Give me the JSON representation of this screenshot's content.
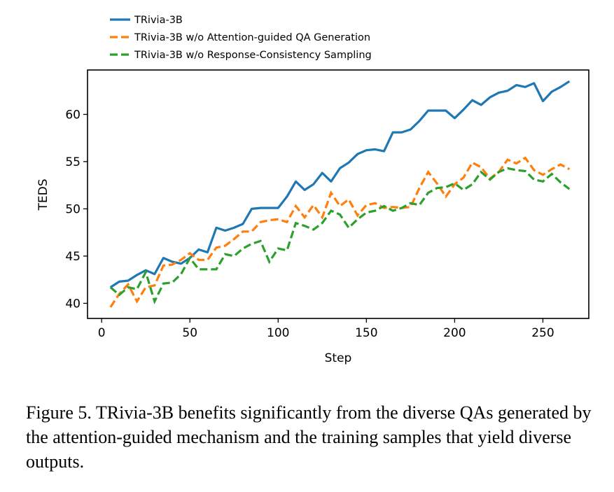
{
  "chart_data": {
    "type": "line",
    "title": "",
    "xlabel": "Step",
    "ylabel": "TEDS",
    "xlim": [
      -8,
      276
    ],
    "ylim": [
      38.4,
      64.7
    ],
    "xticks": [
      0,
      50,
      100,
      150,
      200,
      250
    ],
    "yticks": [
      40,
      45,
      50,
      55,
      60
    ],
    "grid": false,
    "legend_position": "top-left, above plot",
    "x": [
      5,
      10,
      15,
      20,
      25,
      30,
      35,
      40,
      45,
      50,
      55,
      60,
      65,
      70,
      75,
      80,
      85,
      90,
      95,
      100,
      105,
      110,
      115,
      120,
      125,
      130,
      135,
      140,
      145,
      150,
      155,
      160,
      165,
      170,
      175,
      180,
      185,
      190,
      195,
      200,
      205,
      210,
      215,
      220,
      225,
      230,
      235,
      240,
      245,
      250,
      255,
      260,
      265
    ],
    "series": [
      {
        "name": "TRivia-3B",
        "color": "#1f77b4",
        "style": "solid",
        "values": [
          41.7,
          42.3,
          42.4,
          43.0,
          43.5,
          43.1,
          44.8,
          44.4,
          44.2,
          44.8,
          45.7,
          45.4,
          48.0,
          47.7,
          48.0,
          48.4,
          50.0,
          50.1,
          50.1,
          50.1,
          51.3,
          52.9,
          52.0,
          52.6,
          53.8,
          52.9,
          54.3,
          54.9,
          55.8,
          56.2,
          56.3,
          56.1,
          58.1,
          58.1,
          58.4,
          59.3,
          60.4,
          60.4,
          60.4,
          59.6,
          60.5,
          61.5,
          61.0,
          61.8,
          62.3,
          62.5,
          63.1,
          62.9,
          63.3,
          61.4,
          62.4,
          62.9,
          63.5
        ]
      },
      {
        "name": "TRivia-3B w/o Attention-guided QA Generation",
        "color": "#ff7f0e",
        "style": "dashed",
        "values": [
          39.6,
          41.0,
          42.0,
          40.2,
          41.7,
          41.9,
          44.0,
          44.1,
          44.6,
          45.3,
          44.6,
          44.6,
          45.9,
          46.1,
          46.8,
          47.6,
          47.6,
          48.6,
          48.8,
          48.9,
          48.6,
          50.3,
          49.1,
          50.4,
          49.1,
          51.7,
          50.3,
          51.0,
          49.3,
          50.4,
          50.6,
          50.1,
          50.2,
          50.1,
          50.2,
          52.2,
          53.9,
          52.7,
          51.3,
          52.6,
          53.3,
          54.9,
          54.4,
          53.2,
          53.9,
          55.2,
          54.8,
          55.4,
          54.1,
          53.6,
          54.2,
          54.7,
          54.2
        ]
      },
      {
        "name": "TRivia-3B w/o Response-Consistency Sampling",
        "color": "#2ca02c",
        "style": "dashed",
        "values": [
          41.7,
          40.9,
          41.7,
          41.5,
          43.3,
          40.2,
          42.1,
          42.2,
          43.1,
          44.8,
          43.6,
          43.6,
          43.6,
          45.2,
          45.0,
          45.8,
          46.3,
          46.6,
          44.4,
          45.8,
          45.6,
          48.5,
          48.2,
          47.8,
          48.5,
          49.8,
          49.4,
          48.0,
          48.9,
          49.6,
          49.8,
          50.3,
          49.8,
          50.1,
          50.6,
          50.4,
          51.7,
          52.2,
          52.3,
          52.7,
          52.0,
          52.6,
          53.9,
          53.1,
          53.9,
          54.3,
          54.1,
          54.0,
          53.1,
          52.9,
          53.7,
          52.8,
          52.1
        ]
      }
    ]
  },
  "caption": "Figure 5. TRivia-3B benefits significantly from the diverse QAs generated by the attention-guided mechanism and the training samples that yield diverse outputs."
}
